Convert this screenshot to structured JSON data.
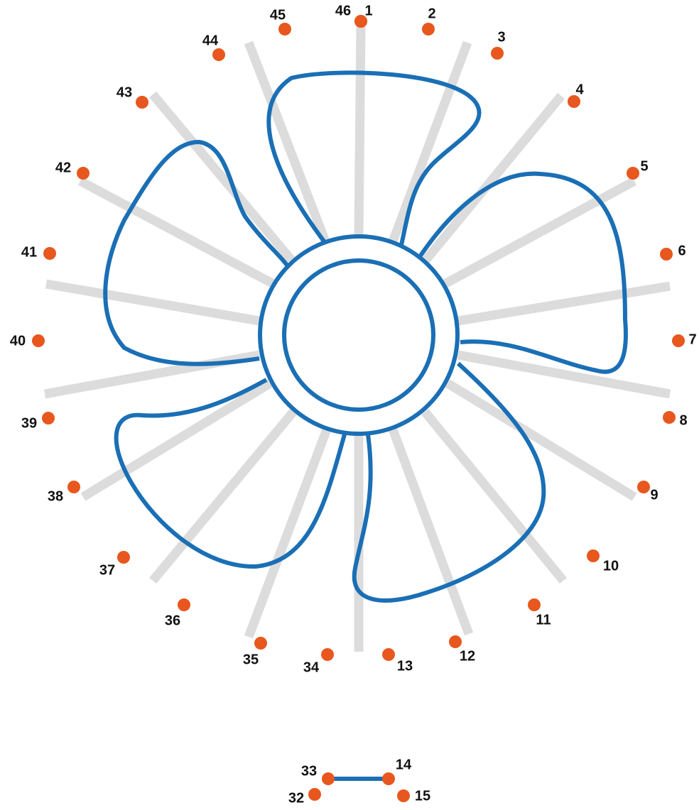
{
  "dots": [
    {
      "label": "1"
    },
    {
      "label": "2"
    },
    {
      "label": "3"
    },
    {
      "label": "4"
    },
    {
      "label": "5"
    },
    {
      "label": "6"
    },
    {
      "label": "7"
    },
    {
      "label": "8"
    },
    {
      "label": "9"
    },
    {
      "label": "10"
    },
    {
      "label": "11"
    },
    {
      "label": "12"
    },
    {
      "label": "13"
    },
    {
      "label": "14"
    },
    {
      "label": "15"
    },
    {
      "label": "32"
    },
    {
      "label": "33"
    },
    {
      "label": "34"
    },
    {
      "label": "35"
    },
    {
      "label": "36"
    },
    {
      "label": "37"
    },
    {
      "label": "38"
    },
    {
      "label": "39"
    },
    {
      "label": "40"
    },
    {
      "label": "41"
    },
    {
      "label": "42"
    },
    {
      "label": "43"
    },
    {
      "label": "44"
    },
    {
      "label": "45"
    },
    {
      "label": "46"
    }
  ]
}
